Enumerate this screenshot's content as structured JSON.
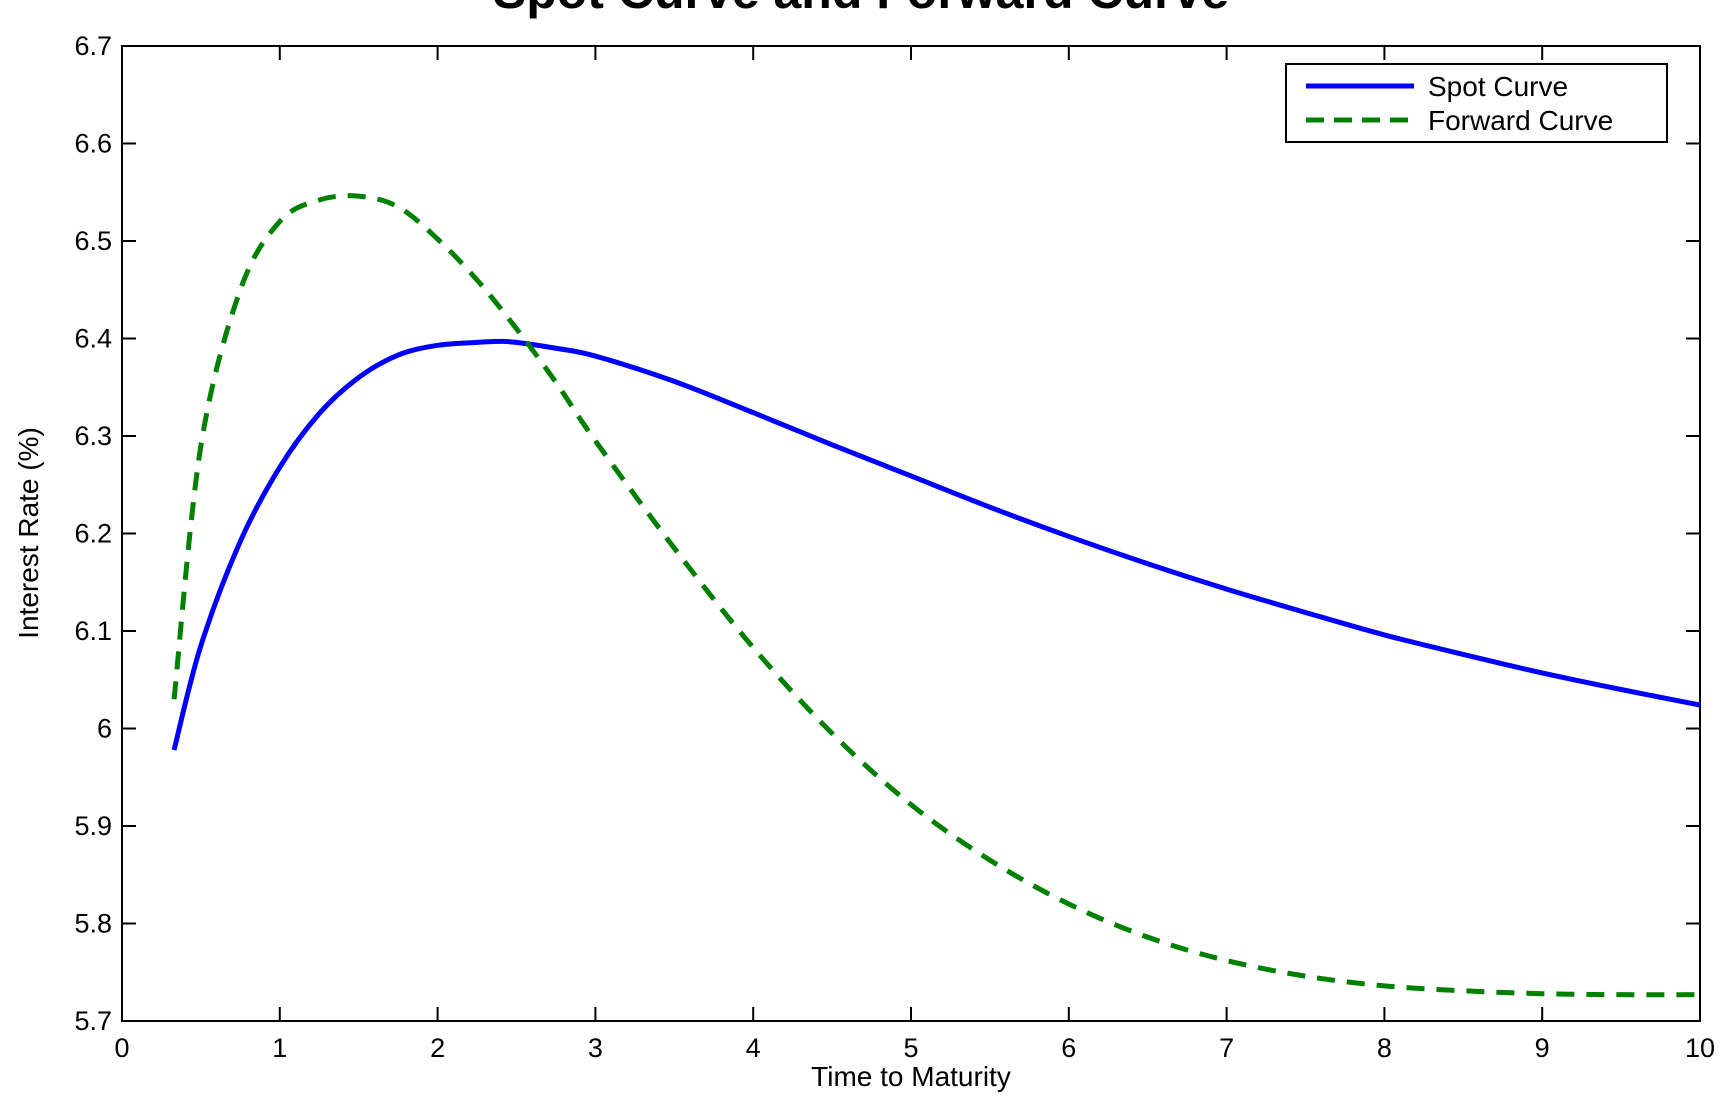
{
  "chart_data": {
    "type": "line",
    "title": "Spot Curve and Forward Curve",
    "xlabel": "Time to Maturity",
    "ylabel": "Interest Rate (%)",
    "xlim": [
      0,
      10
    ],
    "ylim": [
      5.7,
      6.7
    ],
    "xticks": [
      "0",
      "1",
      "2",
      "3",
      "4",
      "5",
      "6",
      "7",
      "8",
      "9",
      "10"
    ],
    "yticks": [
      "5.7",
      "5.8",
      "5.9",
      "6",
      "6.1",
      "6.2",
      "6.3",
      "6.4",
      "6.5",
      "6.6",
      "6.7"
    ],
    "grid": false,
    "legend_position": "top-right",
    "series": [
      {
        "name": "Spot Curve",
        "color": "#0000ff",
        "style": "solid",
        "x": [
          0.33,
          0.5,
          0.75,
          1.0,
          1.25,
          1.5,
          1.75,
          2.0,
          2.25,
          2.4,
          2.5,
          2.75,
          3.0,
          3.5,
          4.0,
          4.5,
          5.0,
          5.5,
          6.0,
          6.5,
          7.0,
          7.5,
          8.0,
          8.5,
          9.0,
          9.5,
          10.0
        ],
        "y": [
          5.978,
          6.085,
          6.192,
          6.268,
          6.323,
          6.36,
          6.383,
          6.393,
          6.396,
          6.397,
          6.396,
          6.39,
          6.382,
          6.356,
          6.324,
          6.291,
          6.259,
          6.227,
          6.197,
          6.169,
          6.143,
          6.119,
          6.096,
          6.076,
          6.057,
          6.04,
          6.024
        ]
      },
      {
        "name": "Forward Curve",
        "color": "#008000",
        "style": "dashed",
        "x": [
          0.33,
          0.5,
          0.75,
          1.0,
          1.25,
          1.5,
          1.75,
          2.0,
          2.25,
          2.5,
          2.75,
          3.0,
          3.5,
          4.0,
          4.5,
          5.0,
          5.5,
          6.0,
          6.5,
          7.0,
          7.5,
          8.0,
          8.5,
          9.0,
          9.5,
          10.0
        ],
        "y": [
          6.03,
          6.29,
          6.45,
          6.52,
          6.542,
          6.546,
          6.535,
          6.502,
          6.46,
          6.41,
          6.355,
          6.295,
          6.185,
          6.083,
          5.995,
          5.922,
          5.865,
          5.82,
          5.786,
          5.762,
          5.746,
          5.736,
          5.731,
          5.728,
          5.727,
          5.727
        ]
      }
    ]
  }
}
